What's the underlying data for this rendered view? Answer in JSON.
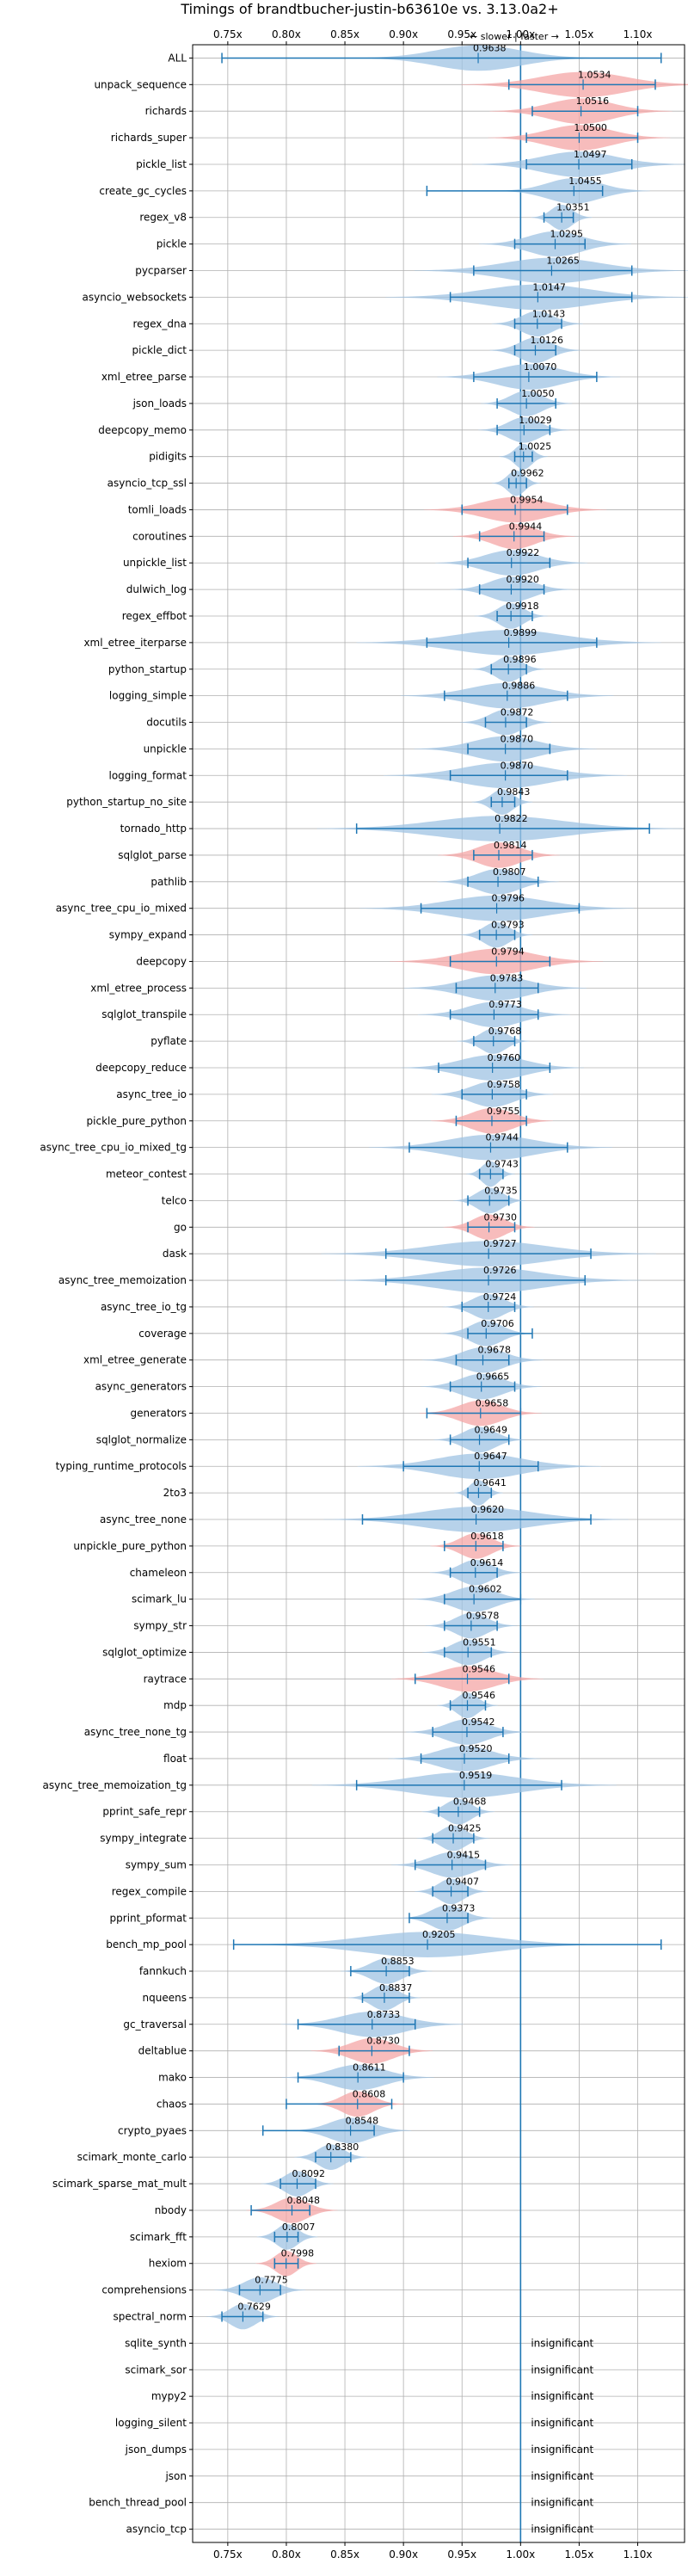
{
  "chart_data": {
    "type": "violin",
    "title": "Timings of brandtbucher-justin-b63610e vs. 3.13.0a2+",
    "direction_label": "← slower | faster →",
    "xlim": [
      0.72,
      1.14
    ],
    "x_ticks": [
      {
        "value": 0.75,
        "label": "0.75x"
      },
      {
        "value": 0.8,
        "label": "0.80x"
      },
      {
        "value": 0.85,
        "label": "0.85x"
      },
      {
        "value": 0.9,
        "label": "0.90x"
      },
      {
        "value": 0.95,
        "label": "0.95x"
      },
      {
        "value": 1.0,
        "label": "1.00x"
      },
      {
        "value": 1.05,
        "label": "1.05x"
      },
      {
        "value": 1.1,
        "label": "1.10x"
      }
    ],
    "insignificant_label": "insignificant",
    "colors": {
      "faster": "#9fc3e3",
      "slower": "#f4a6a6",
      "line": "#1f77b4",
      "grid": "#b0b0b0"
    },
    "benchmarks": [
      {
        "name": "ALL",
        "value": 0.9638,
        "label": "0.9638",
        "min": 0.745,
        "max": 1.12,
        "spread": 0.04,
        "color": "blue"
      },
      {
        "name": "unpack_sequence",
        "value": 1.0534,
        "label": "1.0534",
        "min": 0.99,
        "max": 1.115,
        "spread": 0.04,
        "color": "red"
      },
      {
        "name": "richards",
        "value": 1.0516,
        "label": "1.0516",
        "min": 1.01,
        "max": 1.1,
        "spread": 0.03,
        "color": "red"
      },
      {
        "name": "richards_super",
        "value": 1.05,
        "label": "1.0500",
        "min": 1.005,
        "max": 1.1,
        "spread": 0.03,
        "color": "red"
      },
      {
        "name": "pickle_list",
        "value": 1.0497,
        "label": "1.0497",
        "min": 1.005,
        "max": 1.095,
        "spread": 0.035,
        "color": "blue"
      },
      {
        "name": "create_gc_cycles",
        "value": 1.0455,
        "label": "1.0455",
        "min": 0.92,
        "max": 1.07,
        "spread": 0.025,
        "color": "blue"
      },
      {
        "name": "regex_v8",
        "value": 1.0351,
        "label": "1.0351",
        "min": 1.02,
        "max": 1.045,
        "spread": 0.01,
        "color": "blue"
      },
      {
        "name": "pickle",
        "value": 1.0295,
        "label": "1.0295",
        "min": 0.995,
        "max": 1.055,
        "spread": 0.025,
        "color": "blue"
      },
      {
        "name": "pycparser",
        "value": 1.0265,
        "label": "1.0265",
        "min": 0.96,
        "max": 1.095,
        "spread": 0.045,
        "color": "blue"
      },
      {
        "name": "asyncio_websockets",
        "value": 1.0147,
        "label": "1.0147",
        "min": 0.94,
        "max": 1.095,
        "spread": 0.05,
        "color": "blue"
      },
      {
        "name": "regex_dna",
        "value": 1.0143,
        "label": "1.0143",
        "min": 0.995,
        "max": 1.035,
        "spread": 0.015,
        "color": "blue"
      },
      {
        "name": "pickle_dict",
        "value": 1.0126,
        "label": "1.0126",
        "min": 0.995,
        "max": 1.03,
        "spread": 0.015,
        "color": "blue"
      },
      {
        "name": "xml_etree_parse",
        "value": 1.007,
        "label": "1.0070",
        "min": 0.96,
        "max": 1.065,
        "spread": 0.03,
        "color": "blue"
      },
      {
        "name": "json_loads",
        "value": 1.005,
        "label": "1.0050",
        "min": 0.98,
        "max": 1.03,
        "spread": 0.015,
        "color": "blue"
      },
      {
        "name": "deepcopy_memo",
        "value": 1.0029,
        "label": "1.0029",
        "min": 0.98,
        "max": 1.025,
        "spread": 0.015,
        "color": "blue"
      },
      {
        "name": "pidigits",
        "value": 1.0025,
        "label": "1.0025",
        "min": 0.995,
        "max": 1.01,
        "spread": 0.008,
        "color": "blue"
      },
      {
        "name": "asyncio_tcp_ssl",
        "value": 0.9962,
        "label": "0.9962",
        "min": 0.99,
        "max": 1.005,
        "spread": 0.008,
        "color": "blue"
      },
      {
        "name": "tomli_loads",
        "value": 0.9954,
        "label": "0.9954",
        "min": 0.95,
        "max": 1.04,
        "spread": 0.03,
        "color": "red"
      },
      {
        "name": "coroutines",
        "value": 0.9944,
        "label": "0.9944",
        "min": 0.965,
        "max": 1.02,
        "spread": 0.02,
        "color": "red"
      },
      {
        "name": "unpickle_list",
        "value": 0.9922,
        "label": "0.9922",
        "min": 0.955,
        "max": 1.025,
        "spread": 0.025,
        "color": "blue"
      },
      {
        "name": "dulwich_log",
        "value": 0.992,
        "label": "0.9920",
        "min": 0.965,
        "max": 1.02,
        "spread": 0.02,
        "color": "blue"
      },
      {
        "name": "regex_effbot",
        "value": 0.9918,
        "label": "0.9918",
        "min": 0.98,
        "max": 1.01,
        "spread": 0.012,
        "color": "blue"
      },
      {
        "name": "xml_etree_iterparse",
        "value": 0.9899,
        "label": "0.9899",
        "min": 0.92,
        "max": 1.065,
        "spread": 0.05,
        "color": "blue"
      },
      {
        "name": "python_startup",
        "value": 0.9896,
        "label": "0.9896",
        "min": 0.975,
        "max": 1.005,
        "spread": 0.012,
        "color": "blue"
      },
      {
        "name": "logging_simple",
        "value": 0.9886,
        "label": "0.9886",
        "min": 0.935,
        "max": 1.04,
        "spread": 0.035,
        "color": "blue"
      },
      {
        "name": "docutils",
        "value": 0.9872,
        "label": "0.9872",
        "min": 0.97,
        "max": 1.005,
        "spread": 0.015,
        "color": "blue"
      },
      {
        "name": "unpickle",
        "value": 0.987,
        "label": "0.9870",
        "min": 0.955,
        "max": 1.025,
        "spread": 0.03,
        "color": "blue"
      },
      {
        "name": "logging_format",
        "value": 0.987,
        "label": "0.9870",
        "min": 0.94,
        "max": 1.04,
        "spread": 0.04,
        "color": "blue"
      },
      {
        "name": "python_startup_no_site",
        "value": 0.9843,
        "label": "0.9843",
        "min": 0.975,
        "max": 0.995,
        "spread": 0.01,
        "color": "blue"
      },
      {
        "name": "tornado_http",
        "value": 0.9822,
        "label": "0.9822",
        "min": 0.86,
        "max": 1.11,
        "spread": 0.06,
        "color": "blue"
      },
      {
        "name": "sqlglot_parse",
        "value": 0.9814,
        "label": "0.9814",
        "min": 0.96,
        "max": 1.01,
        "spread": 0.02,
        "color": "red"
      },
      {
        "name": "pathlib",
        "value": 0.9807,
        "label": "0.9807",
        "min": 0.955,
        "max": 1.015,
        "spread": 0.02,
        "color": "blue"
      },
      {
        "name": "async_tree_cpu_io_mixed",
        "value": 0.9796,
        "label": "0.9796",
        "min": 0.915,
        "max": 1.05,
        "spread": 0.045,
        "color": "blue"
      },
      {
        "name": "sympy_expand",
        "value": 0.9793,
        "label": "0.9793",
        "min": 0.965,
        "max": 0.995,
        "spread": 0.012,
        "color": "blue"
      },
      {
        "name": "deepcopy",
        "value": 0.9794,
        "label": "0.9794",
        "min": 0.94,
        "max": 1.025,
        "spread": 0.035,
        "color": "red"
      },
      {
        "name": "xml_etree_process",
        "value": 0.9783,
        "label": "0.9783",
        "min": 0.945,
        "max": 1.015,
        "spread": 0.03,
        "color": "blue"
      },
      {
        "name": "sqlglot_transpile",
        "value": 0.9773,
        "label": "0.9773",
        "min": 0.94,
        "max": 1.015,
        "spread": 0.025,
        "color": "blue"
      },
      {
        "name": "pyflate",
        "value": 0.9768,
        "label": "0.9768",
        "min": 0.96,
        "max": 0.995,
        "spread": 0.012,
        "color": "blue"
      },
      {
        "name": "deepcopy_reduce",
        "value": 0.976,
        "label": "0.9760",
        "min": 0.93,
        "max": 1.025,
        "spread": 0.03,
        "color": "blue"
      },
      {
        "name": "async_tree_io",
        "value": 0.9758,
        "label": "0.9758",
        "min": 0.95,
        "max": 1.005,
        "spread": 0.02,
        "color": "blue"
      },
      {
        "name": "pickle_pure_python",
        "value": 0.9755,
        "label": "0.9755",
        "min": 0.945,
        "max": 1.005,
        "spread": 0.02,
        "color": "red"
      },
      {
        "name": "async_tree_cpu_io_mixed_tg",
        "value": 0.9744,
        "label": "0.9744",
        "min": 0.905,
        "max": 1.04,
        "spread": 0.04,
        "color": "blue"
      },
      {
        "name": "meteor_contest",
        "value": 0.9743,
        "label": "0.9743",
        "min": 0.965,
        "max": 0.985,
        "spread": 0.008,
        "color": "blue"
      },
      {
        "name": "telco",
        "value": 0.9735,
        "label": "0.9735",
        "min": 0.955,
        "max": 0.99,
        "spread": 0.012,
        "color": "blue"
      },
      {
        "name": "go",
        "value": 0.973,
        "label": "0.9730",
        "min": 0.955,
        "max": 0.995,
        "spread": 0.015,
        "color": "red"
      },
      {
        "name": "dask",
        "value": 0.9727,
        "label": "0.9727",
        "min": 0.885,
        "max": 1.06,
        "spread": 0.055,
        "color": "blue"
      },
      {
        "name": "async_tree_memoization",
        "value": 0.9726,
        "label": "0.9726",
        "min": 0.885,
        "max": 1.055,
        "spread": 0.05,
        "color": "blue"
      },
      {
        "name": "async_tree_io_tg",
        "value": 0.9724,
        "label": "0.9724",
        "min": 0.95,
        "max": 0.995,
        "spread": 0.015,
        "color": "blue"
      },
      {
        "name": "coverage",
        "value": 0.9706,
        "label": "0.9706",
        "min": 0.955,
        "max": 1.01,
        "spread": 0.015,
        "color": "blue"
      },
      {
        "name": "xml_etree_generate",
        "value": 0.9678,
        "label": "0.9678",
        "min": 0.945,
        "max": 0.99,
        "spread": 0.02,
        "color": "blue"
      },
      {
        "name": "async_generators",
        "value": 0.9665,
        "label": "0.9665",
        "min": 0.94,
        "max": 0.995,
        "spread": 0.02,
        "color": "blue"
      },
      {
        "name": "generators",
        "value": 0.9658,
        "label": "0.9658",
        "min": 0.92,
        "max": 1.0,
        "spread": 0.02,
        "color": "red"
      },
      {
        "name": "sqlglot_normalize",
        "value": 0.9649,
        "label": "0.9649",
        "min": 0.94,
        "max": 0.99,
        "spread": 0.015,
        "color": "blue"
      },
      {
        "name": "typing_runtime_protocols",
        "value": 0.9647,
        "label": "0.9647",
        "min": 0.9,
        "max": 1.015,
        "spread": 0.04,
        "color": "blue"
      },
      {
        "name": "2to3",
        "value": 0.9641,
        "label": "0.9641",
        "min": 0.955,
        "max": 0.975,
        "spread": 0.008,
        "color": "blue"
      },
      {
        "name": "async_tree_none",
        "value": 0.962,
        "label": "0.9620",
        "min": 0.865,
        "max": 1.06,
        "spread": 0.05,
        "color": "blue"
      },
      {
        "name": "unpickle_pure_python",
        "value": 0.9618,
        "label": "0.9618",
        "min": 0.935,
        "max": 0.985,
        "spread": 0.015,
        "color": "red"
      },
      {
        "name": "chameleon",
        "value": 0.9614,
        "label": "0.9614",
        "min": 0.94,
        "max": 0.98,
        "spread": 0.015,
        "color": "blue"
      },
      {
        "name": "scimark_lu",
        "value": 0.9602,
        "label": "0.9602",
        "min": 0.935,
        "max": 1.0,
        "spread": 0.02,
        "color": "blue"
      },
      {
        "name": "sympy_str",
        "value": 0.9578,
        "label": "0.9578",
        "min": 0.935,
        "max": 0.98,
        "spread": 0.015,
        "color": "blue"
      },
      {
        "name": "sqlglot_optimize",
        "value": 0.9551,
        "label": "0.9551",
        "min": 0.935,
        "max": 0.975,
        "spread": 0.015,
        "color": "blue"
      },
      {
        "name": "raytrace",
        "value": 0.9546,
        "label": "0.9546",
        "min": 0.91,
        "max": 0.99,
        "spread": 0.025,
        "color": "red"
      },
      {
        "name": "mdp",
        "value": 0.9546,
        "label": "0.9546",
        "min": 0.94,
        "max": 0.97,
        "spread": 0.01,
        "color": "blue"
      },
      {
        "name": "async_tree_none_tg",
        "value": 0.9542,
        "label": "0.9542",
        "min": 0.925,
        "max": 0.985,
        "spread": 0.02,
        "color": "blue"
      },
      {
        "name": "float",
        "value": 0.952,
        "label": "0.9520",
        "min": 0.915,
        "max": 0.99,
        "spread": 0.025,
        "color": "blue"
      },
      {
        "name": "async_tree_memoization_tg",
        "value": 0.9519,
        "label": "0.9519",
        "min": 0.86,
        "max": 1.035,
        "spread": 0.05,
        "color": "blue"
      },
      {
        "name": "pprint_safe_repr",
        "value": 0.9468,
        "label": "0.9468",
        "min": 0.93,
        "max": 0.965,
        "spread": 0.012,
        "color": "blue"
      },
      {
        "name": "sympy_integrate",
        "value": 0.9425,
        "label": "0.9425",
        "min": 0.925,
        "max": 0.96,
        "spread": 0.012,
        "color": "blue"
      },
      {
        "name": "sympy_sum",
        "value": 0.9415,
        "label": "0.9415",
        "min": 0.91,
        "max": 0.97,
        "spread": 0.02,
        "color": "blue"
      },
      {
        "name": "regex_compile",
        "value": 0.9407,
        "label": "0.9407",
        "min": 0.925,
        "max": 0.955,
        "spread": 0.012,
        "color": "blue"
      },
      {
        "name": "pprint_pformat",
        "value": 0.9373,
        "label": "0.9373",
        "min": 0.905,
        "max": 0.955,
        "spread": 0.015,
        "color": "blue"
      },
      {
        "name": "bench_mp_pool",
        "value": 0.9205,
        "label": "0.9205",
        "min": 0.755,
        "max": 1.12,
        "spread": 0.06,
        "color": "blue"
      },
      {
        "name": "fannkuch",
        "value": 0.8853,
        "label": "0.8853",
        "min": 0.855,
        "max": 0.905,
        "spread": 0.015,
        "color": "blue"
      },
      {
        "name": "nqueens",
        "value": 0.8837,
        "label": "0.8837",
        "min": 0.865,
        "max": 0.905,
        "spread": 0.012,
        "color": "blue"
      },
      {
        "name": "gc_traversal",
        "value": 0.8733,
        "label": "0.8733",
        "min": 0.81,
        "max": 0.91,
        "spread": 0.03,
        "color": "blue"
      },
      {
        "name": "deltablue",
        "value": 0.873,
        "label": "0.8730",
        "min": 0.845,
        "max": 0.905,
        "spread": 0.02,
        "color": "red"
      },
      {
        "name": "mako",
        "value": 0.8611,
        "label": "0.8611",
        "min": 0.81,
        "max": 0.9,
        "spread": 0.025,
        "color": "blue"
      },
      {
        "name": "chaos",
        "value": 0.8608,
        "label": "0.8608",
        "min": 0.8,
        "max": 0.89,
        "spread": 0.015,
        "color": "red"
      },
      {
        "name": "crypto_pyaes",
        "value": 0.8548,
        "label": "0.8548",
        "min": 0.78,
        "max": 0.875,
        "spread": 0.02,
        "color": "blue"
      },
      {
        "name": "scimark_monte_carlo",
        "value": 0.838,
        "label": "0.8380",
        "min": 0.825,
        "max": 0.855,
        "spread": 0.012,
        "color": "blue"
      },
      {
        "name": "scimark_sparse_mat_mult",
        "value": 0.8092,
        "label": "0.8092",
        "min": 0.795,
        "max": 0.825,
        "spread": 0.012,
        "color": "blue"
      },
      {
        "name": "nbody",
        "value": 0.8048,
        "label": "0.8048",
        "min": 0.77,
        "max": 0.82,
        "spread": 0.015,
        "color": "red"
      },
      {
        "name": "scimark_fft",
        "value": 0.8007,
        "label": "0.8007",
        "min": 0.79,
        "max": 0.81,
        "spread": 0.01,
        "color": "blue"
      },
      {
        "name": "hexiom",
        "value": 0.7998,
        "label": "0.7998",
        "min": 0.79,
        "max": 0.81,
        "spread": 0.01,
        "color": "red"
      },
      {
        "name": "comprehensions",
        "value": 0.7775,
        "label": "0.7775",
        "min": 0.76,
        "max": 0.795,
        "spread": 0.015,
        "color": "blue"
      },
      {
        "name": "spectral_norm",
        "value": 0.7629,
        "label": "0.7629",
        "min": 0.745,
        "max": 0.78,
        "spread": 0.012,
        "color": "blue"
      },
      {
        "name": "sqlite_synth",
        "insignificant": true
      },
      {
        "name": "scimark_sor",
        "insignificant": true
      },
      {
        "name": "mypy2",
        "insignificant": true
      },
      {
        "name": "logging_silent",
        "insignificant": true
      },
      {
        "name": "json_dumps",
        "insignificant": true
      },
      {
        "name": "json",
        "insignificant": true
      },
      {
        "name": "bench_thread_pool",
        "insignificant": true
      },
      {
        "name": "asyncio_tcp",
        "insignificant": true
      }
    ]
  }
}
